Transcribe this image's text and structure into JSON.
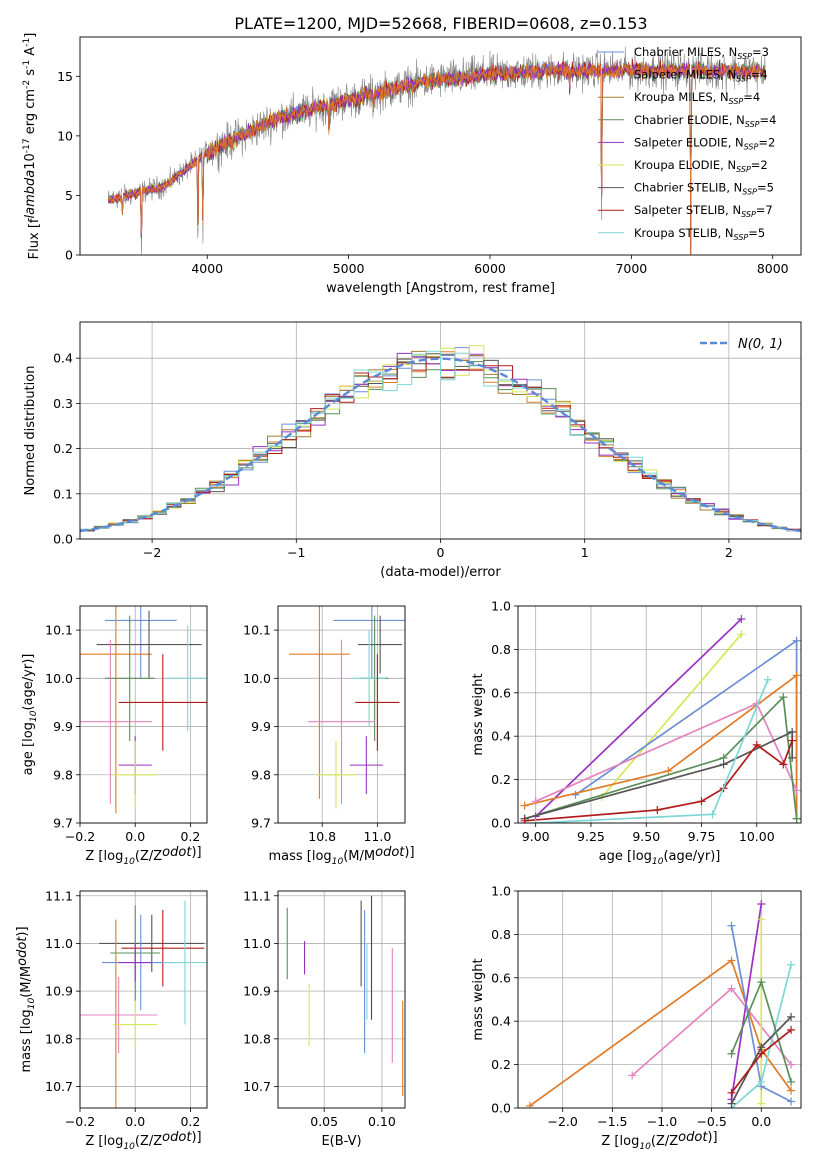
{
  "figure": {
    "title": "PLATE=1200, MJD=52668, FIBERID=0608, z=0.153"
  },
  "series": [
    {
      "name": "Chabrier MILES, N$_{SSP}$=3",
      "label": "Chabrier MILES, N",
      "sub": "SSP",
      "n": "=3",
      "color": "#6b8ed6"
    },
    {
      "name": "Salpeter MILES, N$_{SSP}$=4",
      "label": "Salpeter MILES, N",
      "sub": "SSP",
      "n": "=4",
      "color": "#e07b28"
    },
    {
      "name": "Kroupa MILES, N$_{SSP}$=4",
      "label": "Kroupa MILES, N",
      "sub": "SSP",
      "n": "=4",
      "color": "#a67c2e"
    },
    {
      "name": "Chabrier ELODIE, N$_{SSP}$=4",
      "label": "Chabrier ELODIE, N",
      "sub": "SSP",
      "n": "=4",
      "color": "#5a8f5a"
    },
    {
      "name": "Salpeter ELODIE, N$_{SSP}$=2",
      "label": "Salpeter ELODIE, N",
      "sub": "SSP",
      "n": "=2",
      "color": "#9a32c0"
    },
    {
      "name": "Kroupa ELODIE, N$_{SSP}$=2",
      "label": "Kroupa ELODIE, N",
      "sub": "SSP",
      "n": "=2",
      "color": "#d6e656"
    },
    {
      "name": "Chabrier STELIB, N$_{SSP}$=5",
      "label": "Chabrier STELIB, N",
      "sub": "SSP",
      "n": "=5",
      "color": "#555555"
    },
    {
      "name": "Salpeter STELIB, N$_{SSP}$=7",
      "label": "Salpeter STELIB, N",
      "sub": "SSP",
      "n": "=7",
      "color": "#b01c1c"
    },
    {
      "name": "Kroupa STELIB, N$_{SSP}$=5",
      "label": "Kroupa STELIB, N",
      "sub": "SSP",
      "n": "=5",
      "color": "#7fd6d6"
    },
    {
      "name": "",
      "label": "",
      "sub": "",
      "n": "",
      "color": "#e383c0"
    }
  ],
  "chart_data": [
    {
      "id": "spectrum",
      "type": "line",
      "xlabel": "wavelength [Angstrom, rest frame]",
      "ylabel": "Flux [f$_\\lambda$10$^{-17}$ erg cm$^{-2}$ s$^{-1}$ A$^{-1}$]",
      "xlim": [
        3100,
        8200
      ],
      "ylim": [
        0,
        18.3
      ],
      "xticks": [
        4000,
        5000,
        6000,
        7000,
        8000
      ],
      "yticks": [
        0,
        5,
        10,
        15
      ],
      "grid": false,
      "legend": "top-right",
      "data_range": [
        3300,
        7950
      ],
      "continuum": [
        [
          3300,
          4.6
        ],
        [
          3700,
          5.8
        ],
        [
          4000,
          8.6
        ],
        [
          4500,
          11.5
        ],
        [
          5000,
          13.0
        ],
        [
          5500,
          14.5
        ],
        [
          6000,
          15.2
        ],
        [
          6500,
          15.5
        ],
        [
          7000,
          15.5
        ],
        [
          7500,
          15.5
        ],
        [
          7950,
          15.4
        ]
      ],
      "features": [
        {
          "x": 3400,
          "y": 3.3
        },
        {
          "x": 3534,
          "y": 0
        },
        {
          "x": 3934,
          "y": 0
        },
        {
          "x": 3969,
          "y": 2.1
        },
        {
          "x": 4861,
          "y": 10.2
        },
        {
          "x": 5175,
          "y": 12.4
        },
        {
          "x": 6563,
          "y": 13.8
        },
        {
          "x": 6790,
          "y": 0
        },
        {
          "x": 7420,
          "y": 0
        }
      ]
    },
    {
      "id": "residuals",
      "type": "histogram",
      "xlabel": "(data-model)/error",
      "ylabel": "Normed distribution",
      "xlim": [
        -2.5,
        2.5
      ],
      "ylim": [
        0,
        0.48
      ],
      "xticks": [
        -2,
        -1,
        0,
        1,
        2
      ],
      "yticks": [
        0,
        0.1,
        0.2,
        0.3,
        0.4
      ],
      "grid": true,
      "legend": "top-right",
      "reference": {
        "name": "$\\mathcal{N}(0, 1)$",
        "label": "N(0, 1)",
        "mean": 0,
        "sigma": 1
      },
      "bin_width": 0.1
    },
    {
      "id": "age_vs_Z",
      "type": "errorbar",
      "xlabel": "Z [log$_{10}$(Z/Z$_\\odot$)]",
      "ylabel": "age  [log$_{10}$(age/yr)]",
      "xlim": [
        -0.2,
        0.26
      ],
      "ylim": [
        9.7,
        10.15
      ],
      "xticks": [
        -0.2,
        0.0,
        0.2
      ],
      "yticks": [
        9.7,
        9.8,
        9.9,
        10.0,
        10.1
      ],
      "grid": true,
      "points": [
        {
          "x": 0.02,
          "y": 10.12,
          "xerr": 0.13,
          "yerr": 0.12,
          "color": "#6b8ed6"
        },
        {
          "x": -0.07,
          "y": 10.05,
          "xerr": 0.13,
          "yerr": 0.33,
          "color": "#e07b28"
        },
        {
          "x": 0.05,
          "y": 10.07,
          "xerr": 0.19,
          "yerr": 0.07,
          "color": "#555555"
        },
        {
          "x": -0.02,
          "y": 10.0,
          "xerr": 0.09,
          "yerr": 0.13,
          "color": "#5a8f5a"
        },
        {
          "x": 0.19,
          "y": 10.0,
          "xerr": 0.08,
          "yerr": 0.11,
          "color": "#7fd6d6"
        },
        {
          "x": 0.1,
          "y": 9.95,
          "xerr": 0.16,
          "yerr": 0.1,
          "color": "#b01c1c"
        },
        {
          "x": -0.09,
          "y": 9.91,
          "xerr": 0.15,
          "yerr": 0.17,
          "color": "#e383c0"
        },
        {
          "x": 0.0,
          "y": 9.82,
          "xerr": 0.06,
          "yerr": 0.06,
          "color": "#9a32c0"
        },
        {
          "x": 0.0,
          "y": 9.8,
          "xerr": 0.08,
          "yerr": 0.07,
          "color": "#d6e656"
        }
      ]
    },
    {
      "id": "age_vs_mass",
      "type": "errorbar",
      "xlabel": "mass [log$_{10}$(M/M$_\\odot$)]",
      "xlim": [
        10.64,
        11.1
      ],
      "ylim": [
        9.7,
        10.15
      ],
      "xticks": [
        10.8,
        11.0
      ],
      "yticks": [
        9.7,
        9.8,
        9.9,
        10.0,
        10.1
      ],
      "grid": true,
      "points": [
        {
          "x": 10.98,
          "y": 10.12,
          "xerr": 0.14,
          "yerr": 0.12,
          "color": "#6b8ed6"
        },
        {
          "x": 10.79,
          "y": 10.05,
          "xerr": 0.11,
          "yerr": 0.3,
          "color": "#e07b28"
        },
        {
          "x": 11.01,
          "y": 10.07,
          "xerr": 0.08,
          "yerr": 0.06,
          "color": "#555555"
        },
        {
          "x": 10.99,
          "y": 10.0,
          "xerr": 0.05,
          "yerr": 0.13,
          "color": "#5a8f5a"
        },
        {
          "x": 10.97,
          "y": 10.0,
          "xerr": 0.06,
          "yerr": 0.1,
          "color": "#7fd6d6"
        },
        {
          "x": 11.0,
          "y": 9.95,
          "xerr": 0.08,
          "yerr": 0.1,
          "color": "#b01c1c"
        },
        {
          "x": 10.87,
          "y": 9.91,
          "xerr": 0.12,
          "yerr": 0.17,
          "color": "#e383c0"
        },
        {
          "x": 10.96,
          "y": 9.82,
          "xerr": 0.06,
          "yerr": 0.06,
          "color": "#9a32c0"
        },
        {
          "x": 10.85,
          "y": 9.8,
          "xerr": 0.07,
          "yerr": 0.07,
          "color": "#d6e656"
        }
      ]
    },
    {
      "id": "weight_vs_age",
      "type": "line",
      "xlabel": "age  [log$_{10}$(age/yr)]",
      "ylabel": "mass weight",
      "xlim": [
        8.92,
        10.2
      ],
      "ylim": [
        0,
        1
      ],
      "xticks": [
        9.0,
        9.25,
        9.5,
        9.75,
        10.0
      ],
      "yticks": [
        0,
        0.2,
        0.4,
        0.6,
        0.8,
        1.0
      ],
      "grid": true,
      "series": [
        {
          "color": "#9a32c0",
          "points": [
            [
              9.0,
              0.03
            ],
            [
              9.93,
              0.94
            ]
          ]
        },
        {
          "color": "#d6e656",
          "points": [
            [
              9.3,
              0.12
            ],
            [
              9.93,
              0.87
            ]
          ]
        },
        {
          "color": "#6b8ed6",
          "points": [
            [
              9.18,
              0.13
            ],
            [
              10.18,
              0.84
            ],
            [
              10.18,
              0.02
            ]
          ]
        },
        {
          "color": "#e07b28",
          "points": [
            [
              8.95,
              0.08
            ],
            [
              9.6,
              0.24
            ],
            [
              10.18,
              0.68
            ],
            [
              10.18,
              0.02
            ]
          ]
        },
        {
          "color": "#e383c0",
          "points": [
            [
              9.0,
              0.1
            ],
            [
              10.0,
              0.55
            ],
            [
              10.18,
              0.15
            ]
          ]
        },
        {
          "color": "#5a8f5a",
          "points": [
            [
              8.95,
              0.02
            ],
            [
              9.85,
              0.3
            ],
            [
              10.12,
              0.58
            ],
            [
              10.18,
              0.02
            ]
          ]
        },
        {
          "color": "#555555",
          "points": [
            [
              8.95,
              0.02
            ],
            [
              9.85,
              0.27
            ],
            [
              10.16,
              0.42
            ],
            [
              10.16,
              0.3
            ]
          ]
        },
        {
          "color": "#b01c1c",
          "points": [
            [
              8.95,
              0.01
            ],
            [
              9.55,
              0.06
            ],
            [
              9.75,
              0.1
            ],
            [
              9.85,
              0.16
            ],
            [
              10.0,
              0.36
            ],
            [
              10.12,
              0.27
            ],
            [
              10.16,
              0.38
            ]
          ]
        },
        {
          "color": "#7fd6d6",
          "points": [
            [
              9.0,
              0.0
            ],
            [
              9.8,
              0.04
            ],
            [
              10.05,
              0.66
            ]
          ]
        }
      ]
    },
    {
      "id": "mass_vs_Z",
      "type": "errorbar",
      "xlabel": "Z [log$_{10}$(Z/Z$_\\odot$)]",
      "ylabel": "mass [log$_{10}$(M/M$_\\odot$)]",
      "xlim": [
        -0.2,
        0.26
      ],
      "ylim": [
        10.655,
        11.11
      ],
      "xticks": [
        -0.2,
        0.0,
        0.2
      ],
      "yticks": [
        10.7,
        10.8,
        10.9,
        11.0,
        11.1
      ],
      "grid": true,
      "points": [
        {
          "x": 0.06,
          "y": 11.0,
          "xerr": 0.19,
          "yerr": 0.06,
          "color": "#555555"
        },
        {
          "x": 0.1,
          "y": 10.99,
          "xerr": 0.15,
          "yerr": 0.08,
          "color": "#b01c1c"
        },
        {
          "x": 0.0,
          "y": 10.98,
          "xerr": 0.09,
          "yerr": 0.1,
          "color": "#5a8f5a"
        },
        {
          "x": 0.02,
          "y": 10.96,
          "xerr": 0.14,
          "yerr": 0.1,
          "color": "#6b8ed6"
        },
        {
          "x": 0.18,
          "y": 10.96,
          "xerr": 0.08,
          "yerr": 0.13,
          "color": "#7fd6d6"
        },
        {
          "x": 0.0,
          "y": 10.96,
          "xerr": 0.06,
          "yerr": 0.04,
          "color": "#9a32c0"
        },
        {
          "x": -0.07,
          "y": 10.85,
          "xerr": 0.15,
          "yerr": 0.2,
          "color": "#e07b28"
        },
        {
          "x": -0.06,
          "y": 10.85,
          "xerr": 0.14,
          "yerr": 0.08,
          "color": "#e383c0"
        },
        {
          "x": 0.0,
          "y": 10.83,
          "xerr": 0.08,
          "yerr": 0.05,
          "color": "#d6e656"
        }
      ]
    },
    {
      "id": "mass_vs_ebv",
      "type": "errorbar",
      "xlabel": "E(B-V)",
      "xlim": [
        0.01,
        0.12
      ],
      "ylim": [
        10.655,
        11.11
      ],
      "xticks": [
        0.05,
        0.1
      ],
      "yticks": [
        10.7,
        10.8,
        10.9,
        11.0,
        11.1
      ],
      "grid": true,
      "points": [
        {
          "x": 0.018,
          "y": 11.0,
          "yerr": 0.075,
          "color": "#5a8f5a"
        },
        {
          "x": 0.033,
          "y": 10.97,
          "yerr": 0.035,
          "color": "#9a32c0"
        },
        {
          "x": 0.037,
          "y": 10.85,
          "yerr": 0.065,
          "color": "#d6e656"
        },
        {
          "x": 0.082,
          "y": 11.0,
          "yerr": 0.09,
          "color": "#555555"
        },
        {
          "x": 0.085,
          "y": 10.92,
          "yerr": 0.15,
          "color": "#6b8ed6"
        },
        {
          "x": 0.087,
          "y": 10.92,
          "yerr": 0.08,
          "color": "#7fd6d6"
        },
        {
          "x": 0.091,
          "y": 10.97,
          "yerr": 0.13,
          "color": "#b01c1c"
        },
        {
          "x": 0.109,
          "y": 10.87,
          "yerr": 0.12,
          "color": "#e383c0"
        },
        {
          "x": 0.118,
          "y": 10.78,
          "yerr": 0.1,
          "color": "#e07b28"
        }
      ]
    },
    {
      "id": "weight_vs_Z",
      "type": "line",
      "xlabel": "Z [log$_{10}$(Z/Z$_\\odot$)]",
      "ylabel": "mass weight",
      "xlim": [
        -2.45,
        0.4
      ],
      "ylim": [
        0,
        1
      ],
      "xticks": [
        -2.0,
        -1.5,
        -1.0,
        -0.5,
        0.0
      ],
      "yticks": [
        0,
        0.2,
        0.4,
        0.6,
        0.8,
        1.0
      ],
      "grid": true,
      "series": [
        {
          "color": "#e07b28",
          "points": [
            [
              -2.33,
              0.01
            ],
            [
              -0.3,
              0.68
            ],
            [
              0.0,
              0.27
            ],
            [
              0.3,
              0.08
            ]
          ]
        },
        {
          "color": "#e383c0",
          "points": [
            [
              -1.3,
              0.15
            ],
            [
              -0.3,
              0.55
            ],
            [
              0.3,
              0.2
            ]
          ]
        },
        {
          "color": "#9a32c0",
          "points": [
            [
              -0.3,
              0.04
            ],
            [
              0.0,
              0.94
            ]
          ]
        },
        {
          "color": "#d6e656",
          "points": [
            [
              0.0,
              0.02
            ],
            [
              0.0,
              0.87
            ]
          ]
        },
        {
          "color": "#6b8ed6",
          "points": [
            [
              -0.3,
              0.84
            ],
            [
              0.0,
              0.1
            ],
            [
              0.3,
              0.03
            ]
          ]
        },
        {
          "color": "#7fd6d6",
          "points": [
            [
              -0.3,
              0.0
            ],
            [
              0.0,
              0.12
            ],
            [
              0.3,
              0.66
            ]
          ]
        },
        {
          "color": "#555555",
          "points": [
            [
              -0.3,
              0.02
            ],
            [
              0.0,
              0.28
            ],
            [
              0.3,
              0.42
            ]
          ]
        },
        {
          "color": "#5a8f5a",
          "points": [
            [
              -0.3,
              0.25
            ],
            [
              0.0,
              0.58
            ],
            [
              0.3,
              0.12
            ]
          ]
        },
        {
          "color": "#b01c1c",
          "points": [
            [
              -0.3,
              0.07
            ],
            [
              0.0,
              0.25
            ],
            [
              0.3,
              0.36
            ]
          ]
        }
      ]
    }
  ]
}
